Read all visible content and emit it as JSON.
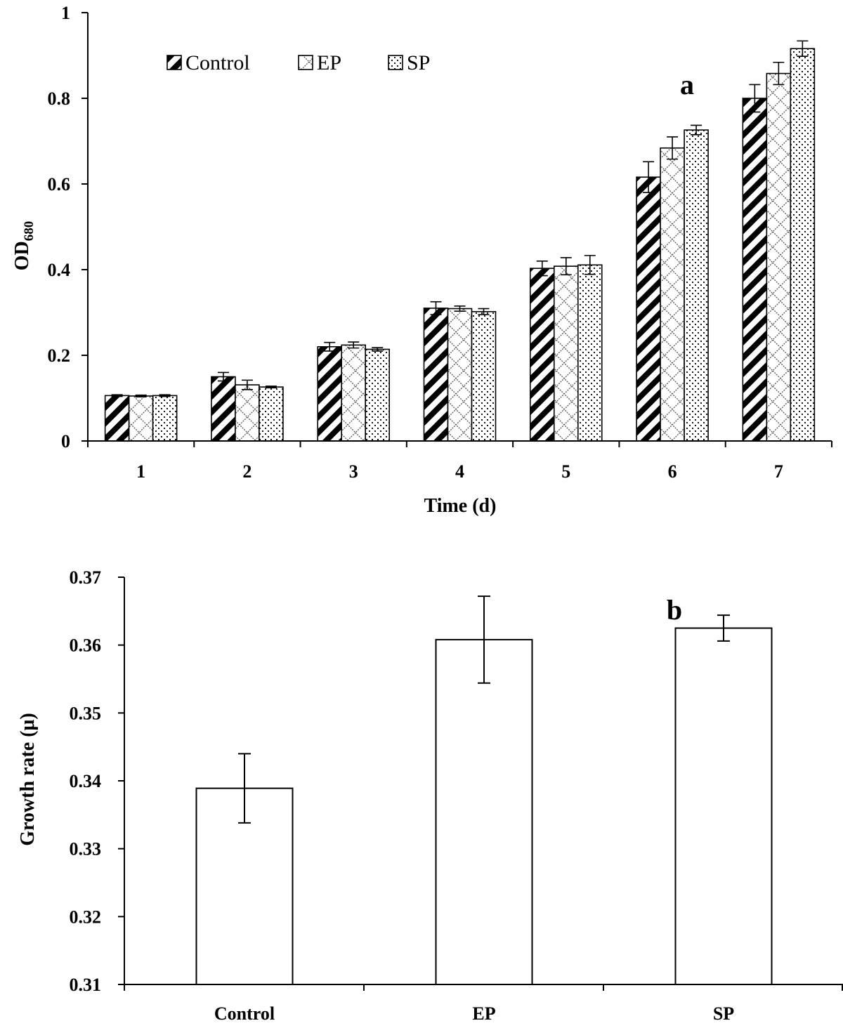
{
  "chart_data": [
    {
      "type": "bar",
      "panel_label": "a",
      "categories": [
        "1",
        "2",
        "3",
        "4",
        "5",
        "6",
        "7"
      ],
      "series": [
        {
          "name": "Control",
          "pattern": "diagonal-stripes",
          "values": [
            0.106,
            0.15,
            0.22,
            0.31,
            0.403,
            0.616,
            0.8
          ],
          "errors": [
            0.002,
            0.01,
            0.01,
            0.015,
            0.017,
            0.036,
            0.032
          ]
        },
        {
          "name": "EP",
          "pattern": "crosshatch",
          "values": [
            0.105,
            0.131,
            0.224,
            0.309,
            0.408,
            0.684,
            0.858
          ],
          "errors": [
            0.002,
            0.011,
            0.007,
            0.006,
            0.02,
            0.026,
            0.026
          ]
        },
        {
          "name": "SP",
          "pattern": "dots",
          "values": [
            0.106,
            0.126,
            0.214,
            0.302,
            0.411,
            0.726,
            0.916
          ],
          "errors": [
            0.002,
            0.002,
            0.004,
            0.007,
            0.022,
            0.011,
            0.018
          ]
        }
      ],
      "xlabel": "Time (d)",
      "ylabel": "OD",
      "ylabel_subscript": "680",
      "ylim": [
        0,
        1
      ],
      "yticks": [
        "0",
        "0.2",
        "0.4",
        "0.6",
        "0.8",
        "1"
      ],
      "legend": "top-left, horizontal",
      "grid": false
    },
    {
      "type": "bar",
      "panel_label": "b",
      "categories": [
        "Control",
        "EP",
        "SP"
      ],
      "values": [
        0.3389,
        0.3608,
        0.3625
      ],
      "errors": [
        0.0051,
        0.0064,
        0.0019
      ],
      "xlabel": "",
      "ylabel": "Growth rate (μ)",
      "ylim": [
        0.31,
        0.37
      ],
      "yticks": [
        "0.31",
        "0.32",
        "0.33",
        "0.34",
        "0.35",
        "0.36",
        "0.37"
      ],
      "grid": false
    }
  ]
}
